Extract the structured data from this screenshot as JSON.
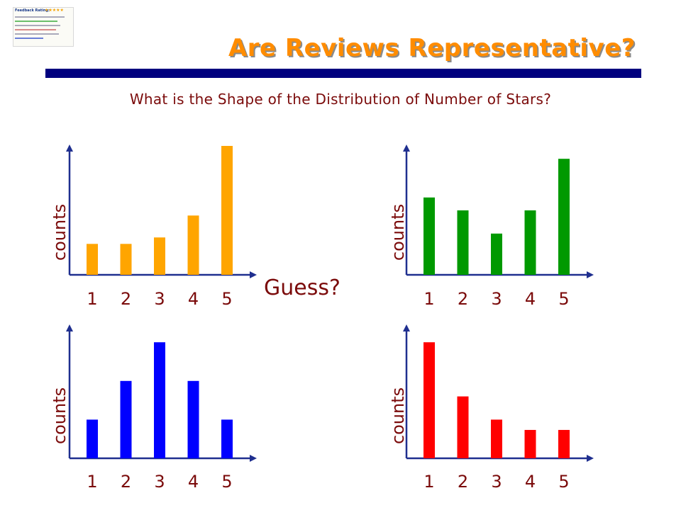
{
  "slide": {
    "title": "Are Reviews Representative?",
    "subtitle": "What is the Shape of the Distribution of Number of Stars?",
    "guess": "Guess?",
    "title_color": "#ff8c00",
    "rule_color": "#00007f",
    "text_color": "#7b0b0b"
  },
  "thumbnail": {
    "heading": "Feedback Rating:",
    "icon": "feedback-rating-thumbnail"
  },
  "chart_data": [
    {
      "type": "bar",
      "categories": [
        "1",
        "2",
        "3",
        "4",
        "5"
      ],
      "values": [
        2.4,
        2.4,
        2.9,
        4.6,
        10
      ],
      "ylabel": "counts",
      "xlabel": "",
      "color": "#ffa500",
      "ylim": [
        0,
        10
      ],
      "grid": false
    },
    {
      "type": "bar",
      "categories": [
        "1",
        "2",
        "3",
        "4",
        "5"
      ],
      "values": [
        6,
        5,
        3.2,
        5,
        9
      ],
      "ylabel": "counts",
      "xlabel": "",
      "color": "#009900",
      "ylim": [
        0,
        10
      ],
      "grid": false
    },
    {
      "type": "bar",
      "categories": [
        "1",
        "2",
        "3",
        "4",
        "5"
      ],
      "values": [
        3,
        6,
        9,
        6,
        3
      ],
      "ylabel": "counts",
      "xlabel": "",
      "color": "#0000ff",
      "ylim": [
        0,
        10
      ],
      "grid": false
    },
    {
      "type": "bar",
      "categories": [
        "1",
        "2",
        "3",
        "4",
        "5"
      ],
      "values": [
        9,
        4.8,
        3,
        2.2,
        2.2
      ],
      "ylabel": "counts",
      "xlabel": "",
      "color": "#ff0000",
      "ylim": [
        0,
        10
      ],
      "grid": false
    }
  ]
}
